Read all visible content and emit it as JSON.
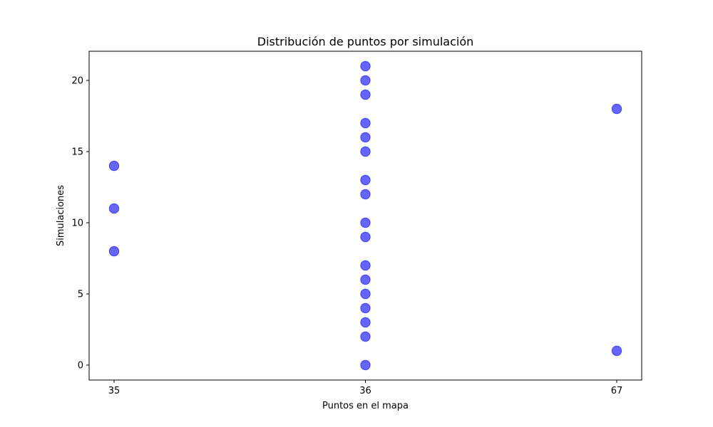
{
  "chart_data": {
    "type": "scatter",
    "title": "Distribución de puntos por simulación",
    "xlabel": "Puntos en el mapa",
    "ylabel": "Simulaciones",
    "x_axis_type": "categorical",
    "x_categories": [
      "35",
      "36",
      "67"
    ],
    "y_ticks": [
      0,
      5,
      10,
      15,
      20
    ],
    "ylim": [
      -1.05,
      22.05
    ],
    "grid": false,
    "legend": "none",
    "marker_color": "#0000ff",
    "marker_opacity": 0.6,
    "series": [
      {
        "points": [
          {
            "x": "35",
            "y": 8
          },
          {
            "x": "35",
            "y": 11
          },
          {
            "x": "35",
            "y": 14
          },
          {
            "x": "36",
            "y": 0
          },
          {
            "x": "36",
            "y": 2
          },
          {
            "x": "36",
            "y": 3
          },
          {
            "x": "36",
            "y": 4
          },
          {
            "x": "36",
            "y": 5
          },
          {
            "x": "36",
            "y": 6
          },
          {
            "x": "36",
            "y": 7
          },
          {
            "x": "36",
            "y": 9
          },
          {
            "x": "36",
            "y": 10
          },
          {
            "x": "36",
            "y": 12
          },
          {
            "x": "36",
            "y": 13
          },
          {
            "x": "36",
            "y": 15
          },
          {
            "x": "36",
            "y": 16
          },
          {
            "x": "36",
            "y": 17
          },
          {
            "x": "36",
            "y": 19
          },
          {
            "x": "36",
            "y": 20
          },
          {
            "x": "36",
            "y": 21
          },
          {
            "x": "67",
            "y": 1
          },
          {
            "x": "67",
            "y": 18
          }
        ]
      }
    ]
  }
}
